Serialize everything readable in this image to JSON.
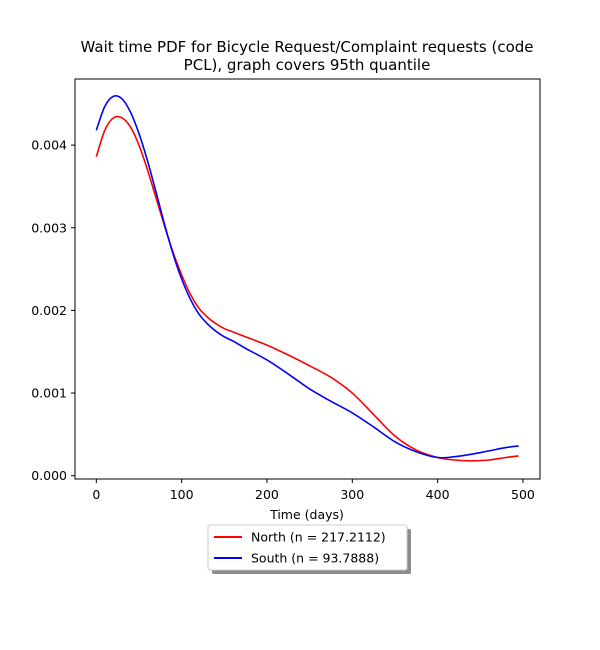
{
  "chart_data": {
    "type": "line",
    "title_line1": "Wait time PDF for Bicycle Request/Complaint  requests (code",
    "title_line2": "PCL), graph covers 95th quantile",
    "xlabel": "Time (days)",
    "ylabel": "",
    "xlim": [
      -25,
      520
    ],
    "ylim": [
      -4e-05,
      0.0048
    ],
    "xticks": [
      0,
      100,
      200,
      300,
      400,
      500
    ],
    "xtick_labels": [
      "0",
      "100",
      "200",
      "300",
      "400",
      "500"
    ],
    "yticks": [
      0.0,
      0.001,
      0.002,
      0.003,
      0.004
    ],
    "ytick_labels": [
      "0.000",
      "0.001",
      "0.002",
      "0.003",
      "0.004"
    ],
    "grid": false,
    "legend_position": "below-center",
    "series": [
      {
        "name": "North (n = 217.2112)",
        "color": "#ff0000",
        "x": [
          0,
          10,
          20,
          30,
          40,
          50,
          60,
          70,
          80,
          90,
          100,
          110,
          120,
          130,
          140,
          150,
          160,
          175,
          200,
          225,
          250,
          275,
          300,
          325,
          350,
          375,
          400,
          420,
          440,
          460,
          480,
          495
        ],
        "y": [
          0.00386,
          0.00418,
          0.00433,
          0.00433,
          0.00422,
          0.004,
          0.0037,
          0.00336,
          0.00302,
          0.0027,
          0.00243,
          0.0022,
          0.00203,
          0.00192,
          0.00184,
          0.00178,
          0.00174,
          0.00168,
          0.00158,
          0.00146,
          0.00133,
          0.00119,
          0.001,
          0.00074,
          0.00048,
          0.00031,
          0.00022,
          0.00019,
          0.00018,
          0.00019,
          0.00022,
          0.00024
        ]
      },
      {
        "name": "South (n = 93.7888)",
        "color": "#0000ff",
        "x": [
          0,
          10,
          20,
          30,
          40,
          50,
          60,
          70,
          80,
          90,
          100,
          110,
          120,
          130,
          140,
          150,
          160,
          175,
          200,
          225,
          250,
          275,
          300,
          325,
          350,
          375,
          400,
          420,
          440,
          460,
          480,
          495
        ],
        "y": [
          0.00418,
          0.00447,
          0.00459,
          0.00456,
          0.0044,
          0.00414,
          0.00381,
          0.00343,
          0.00304,
          0.00268,
          0.00238,
          0.00214,
          0.00196,
          0.00184,
          0.00175,
          0.00168,
          0.00163,
          0.00154,
          0.0014,
          0.00123,
          0.00105,
          0.0009,
          0.00076,
          0.00059,
          0.00041,
          0.00029,
          0.00022,
          0.00023,
          0.00026,
          0.0003,
          0.00034,
          0.00036
        ]
      }
    ]
  }
}
